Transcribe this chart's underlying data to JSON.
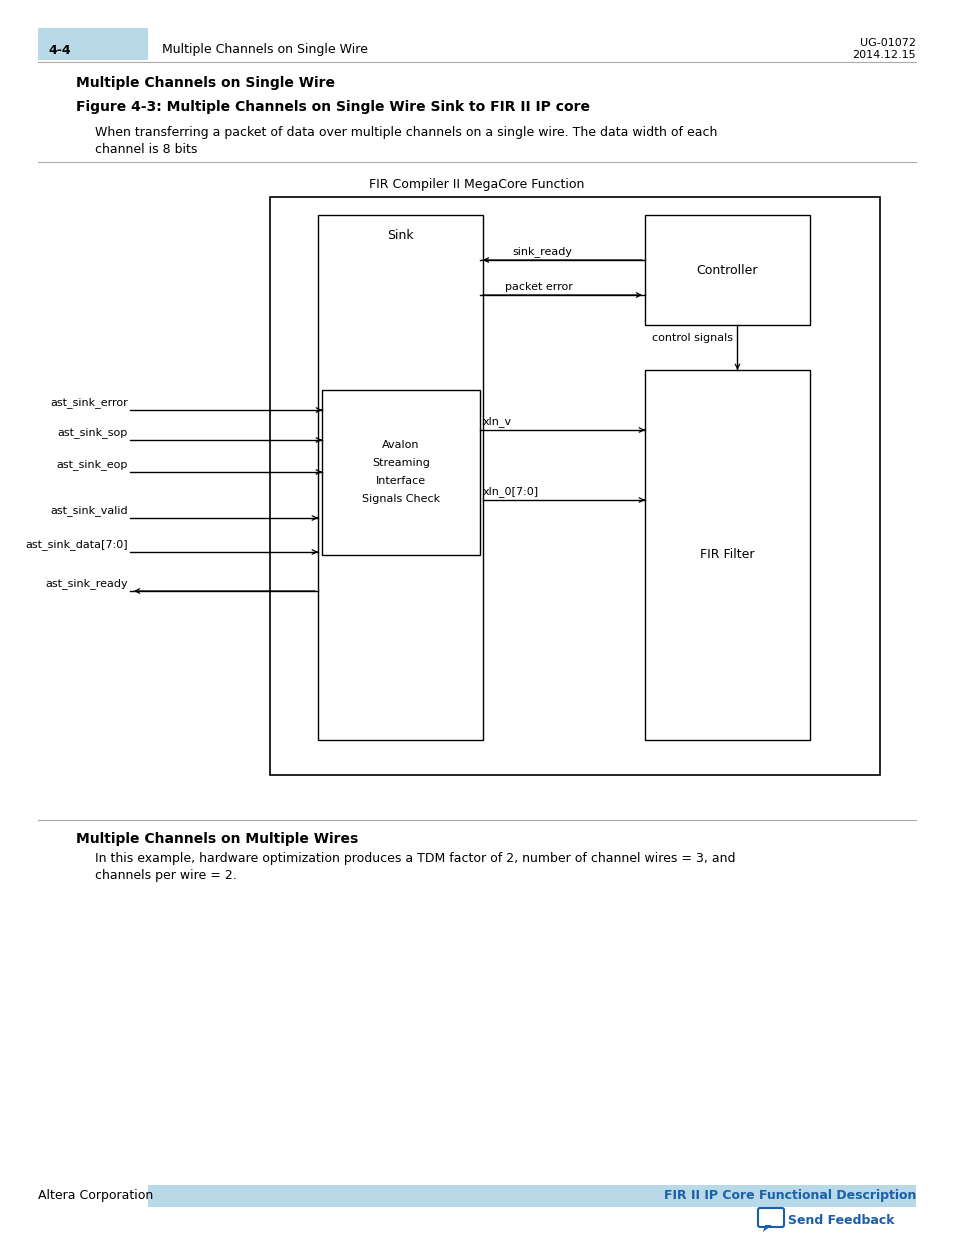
{
  "page_number": "4-4",
  "page_header_left": "Multiple Channels on Single Wire",
  "page_header_right_line1": "UG-01072",
  "page_header_right_line2": "2014.12.15",
  "section_title": "Multiple Channels on Single Wire",
  "figure_caption": "Figure 4-3: Multiple Channels on Single Wire Sink to FIR II IP core",
  "description_line1": "When transferring a packet of data over multiple channels on a single wire. The data width of each",
  "description_line2": "channel is 8 bits",
  "diagram_title": "FIR Compiler II MegaCore Function",
  "sink_label": "Sink",
  "avalon_label_lines": [
    "Avalon",
    "Streaming",
    "Interface",
    "Signals Check"
  ],
  "controller_label": "Controller",
  "fir_label": "FIR Filter",
  "section2_title": "Multiple Channels on Multiple Wires",
  "section2_text_line1": "In this example, hardware optimization produces a TDM factor of 2, number of channel wires = 3, and",
  "section2_text_line2": "channels per wire = 2.",
  "footer_left": "Altera Corporation",
  "footer_right": "FIR II IP Core Functional Description",
  "footer_link": "Send Feedback",
  "header_tab_color": "#b8d9e8",
  "footer_bar_color": "#b8d9e8",
  "footer_link_color": "#1a5fa8",
  "page_bg": "#ffffff"
}
